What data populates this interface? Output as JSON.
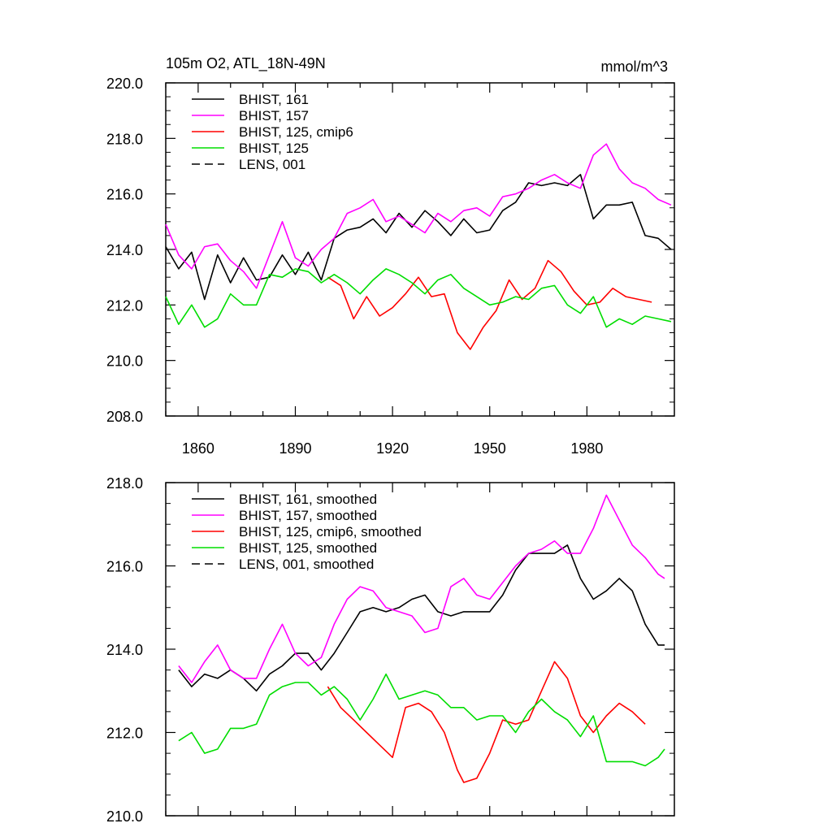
{
  "chart_data": [
    {
      "type": "line",
      "title": "105m O2, ATL_18N-49N",
      "units": "mmol/m^3",
      "xlim": [
        1850,
        2007
      ],
      "ylim": [
        208.0,
        220.0
      ],
      "xticks": [
        "1860",
        "1890",
        "1920",
        "1950",
        "1980"
      ],
      "xtick_values": [
        1860,
        1890,
        1920,
        1950,
        1980
      ],
      "yticks": [
        "208.0",
        "210.0",
        "212.0",
        "214.0",
        "216.0",
        "218.0",
        "220.0"
      ],
      "ytick_values": [
        208,
        210,
        212,
        214,
        216,
        218,
        220
      ],
      "legend_position": "top-left",
      "series": [
        {
          "name": "BHIST, 161",
          "color": "#000000",
          "dash": "solid",
          "x": [
            1850,
            1854,
            1858,
            1862,
            1866,
            1870,
            1874,
            1878,
            1882,
            1886,
            1890,
            1894,
            1898,
            1902,
            1906,
            1910,
            1914,
            1918,
            1922,
            1926,
            1930,
            1934,
            1938,
            1942,
            1946,
            1950,
            1954,
            1958,
            1962,
            1966,
            1970,
            1974,
            1978,
            1982,
            1986,
            1990,
            1994,
            1998,
            2002,
            2006
          ],
          "y": [
            214.1,
            213.3,
            213.9,
            212.2,
            213.8,
            212.8,
            213.7,
            212.9,
            213.0,
            213.8,
            213.1,
            213.9,
            212.9,
            214.4,
            214.7,
            214.8,
            215.1,
            214.6,
            215.3,
            214.8,
            215.4,
            215.0,
            214.5,
            215.1,
            214.6,
            214.7,
            215.4,
            215.7,
            216.4,
            216.3,
            216.4,
            216.3,
            216.7,
            215.1,
            215.6,
            215.6,
            215.7,
            214.5,
            214.4,
            214.0
          ]
        },
        {
          "name": "BHIST, 157",
          "color": "#ff00ff",
          "dash": "solid",
          "x": [
            1850,
            1854,
            1858,
            1862,
            1866,
            1870,
            1874,
            1878,
            1882,
            1886,
            1890,
            1894,
            1898,
            1902,
            1906,
            1910,
            1914,
            1918,
            1922,
            1926,
            1930,
            1934,
            1938,
            1942,
            1946,
            1950,
            1954,
            1958,
            1962,
            1966,
            1970,
            1974,
            1978,
            1982,
            1986,
            1990,
            1994,
            1998,
            2002,
            2006
          ],
          "y": [
            214.9,
            213.8,
            213.3,
            214.1,
            214.2,
            213.6,
            213.2,
            212.6,
            213.8,
            215.0,
            213.7,
            213.4,
            214.0,
            214.4,
            215.3,
            215.5,
            215.8,
            215.0,
            215.2,
            214.9,
            214.6,
            215.3,
            215.0,
            215.4,
            215.5,
            215.2,
            215.9,
            216.0,
            216.2,
            216.5,
            216.7,
            216.4,
            216.2,
            217.4,
            217.8,
            216.9,
            216.4,
            216.2,
            215.8,
            215.6
          ]
        },
        {
          "name": "BHIST, 125, cmip6",
          "color": "#ff0000",
          "dash": "solid",
          "x": [
            1900,
            1904,
            1908,
            1912,
            1916,
            1920,
            1924,
            1928,
            1932,
            1936,
            1940,
            1944,
            1948,
            1952,
            1956,
            1960,
            1964,
            1968,
            1972,
            1976,
            1980,
            1984,
            1988,
            1992,
            1996,
            2000
          ],
          "y": [
            213.0,
            212.7,
            211.5,
            212.3,
            211.6,
            211.9,
            212.4,
            213.0,
            212.3,
            212.4,
            211.0,
            210.4,
            211.2,
            211.8,
            212.9,
            212.2,
            212.6,
            213.6,
            213.2,
            212.5,
            212.0,
            212.1,
            212.6,
            212.3,
            212.2,
            212.1
          ]
        },
        {
          "name": "BHIST, 125",
          "color": "#00dd00",
          "dash": "solid",
          "x": [
            1850,
            1854,
            1858,
            1862,
            1866,
            1870,
            1874,
            1878,
            1882,
            1886,
            1890,
            1894,
            1898,
            1902,
            1906,
            1910,
            1914,
            1918,
            1922,
            1926,
            1930,
            1934,
            1938,
            1942,
            1946,
            1950,
            1954,
            1958,
            1962,
            1966,
            1970,
            1974,
            1978,
            1982,
            1986,
            1990,
            1994,
            1998,
            2002,
            2006
          ],
          "y": [
            212.3,
            211.3,
            212.0,
            211.2,
            211.5,
            212.4,
            212.0,
            212.0,
            213.1,
            213.0,
            213.3,
            213.2,
            212.8,
            213.1,
            212.8,
            212.4,
            212.9,
            213.3,
            213.1,
            212.8,
            212.4,
            212.9,
            213.1,
            212.6,
            212.3,
            212.0,
            212.1,
            212.3,
            212.2,
            212.6,
            212.7,
            212.0,
            211.7,
            212.3,
            211.2,
            211.5,
            211.3,
            211.6,
            211.5,
            211.4
          ]
        },
        {
          "name": "LENS, 001",
          "color": "#000000",
          "dash": "dashed",
          "x": [],
          "y": []
        }
      ]
    },
    {
      "type": "line",
      "xlim": [
        1850,
        2007
      ],
      "ylim": [
        210.0,
        218.0
      ],
      "xtick_values": [
        1860,
        1890,
        1920,
        1950,
        1980
      ],
      "yticks": [
        "210.0",
        "212.0",
        "214.0",
        "216.0",
        "218.0"
      ],
      "ytick_values": [
        210,
        212,
        214,
        216,
        218
      ],
      "legend_position": "top-left",
      "series": [
        {
          "name": "BHIST, 161, smoothed",
          "color": "#000000",
          "dash": "solid",
          "x": [
            1854,
            1858,
            1862,
            1866,
            1870,
            1874,
            1878,
            1882,
            1886,
            1890,
            1894,
            1898,
            1902,
            1906,
            1910,
            1914,
            1918,
            1922,
            1926,
            1930,
            1934,
            1938,
            1942,
            1946,
            1950,
            1954,
            1958,
            1962,
            1966,
            1970,
            1974,
            1978,
            1982,
            1986,
            1990,
            1994,
            1998,
            2002,
            2004
          ],
          "y": [
            213.5,
            213.1,
            213.4,
            213.3,
            213.5,
            213.3,
            213.0,
            213.4,
            213.6,
            213.9,
            213.9,
            213.5,
            213.9,
            214.4,
            214.9,
            215.0,
            214.9,
            215.0,
            215.2,
            215.3,
            214.9,
            214.8,
            214.9,
            214.9,
            214.9,
            215.3,
            215.9,
            216.3,
            216.3,
            216.3,
            216.5,
            215.7,
            215.2,
            215.4,
            215.7,
            215.4,
            214.6,
            214.1,
            214.1
          ]
        },
        {
          "name": "BHIST, 157, smoothed",
          "color": "#ff00ff",
          "dash": "solid",
          "x": [
            1854,
            1858,
            1862,
            1866,
            1870,
            1874,
            1878,
            1882,
            1886,
            1890,
            1894,
            1898,
            1902,
            1906,
            1910,
            1914,
            1918,
            1922,
            1926,
            1930,
            1934,
            1938,
            1942,
            1946,
            1950,
            1954,
            1958,
            1962,
            1966,
            1970,
            1974,
            1978,
            1982,
            1986,
            1990,
            1994,
            1998,
            2002,
            2004
          ],
          "y": [
            213.6,
            213.2,
            213.7,
            214.1,
            213.5,
            213.3,
            213.3,
            214.0,
            214.6,
            213.9,
            213.6,
            213.8,
            214.6,
            215.2,
            215.5,
            215.4,
            215.0,
            214.9,
            214.8,
            214.4,
            214.5,
            215.5,
            215.7,
            215.3,
            215.2,
            215.6,
            216.0,
            216.3,
            216.4,
            216.6,
            216.3,
            216.3,
            216.9,
            217.7,
            217.1,
            216.5,
            216.2,
            215.8,
            215.7
          ]
        },
        {
          "name": "BHIST, 125, cmip6, smoothed",
          "color": "#ff0000",
          "dash": "solid",
          "x": [
            1900,
            1904,
            1908,
            1912,
            1916,
            1920,
            1924,
            1928,
            1932,
            1936,
            1940,
            1942,
            1946,
            1950,
            1954,
            1958,
            1962,
            1966,
            1970,
            1974,
            1978,
            1982,
            1986,
            1990,
            1994,
            1998
          ],
          "y": [
            213.1,
            212.6,
            212.3,
            212.0,
            211.7,
            211.4,
            212.6,
            212.7,
            212.5,
            212.0,
            211.1,
            210.8,
            210.9,
            211.5,
            212.3,
            212.2,
            212.3,
            213.0,
            213.7,
            213.3,
            212.4,
            212.0,
            212.4,
            212.7,
            212.5,
            212.2
          ]
        },
        {
          "name": "BHIST, 125, smoothed",
          "color": "#00dd00",
          "dash": "solid",
          "x": [
            1854,
            1858,
            1862,
            1866,
            1870,
            1874,
            1878,
            1882,
            1886,
            1890,
            1894,
            1898,
            1902,
            1906,
            1910,
            1914,
            1918,
            1922,
            1926,
            1930,
            1934,
            1938,
            1942,
            1946,
            1950,
            1954,
            1958,
            1962,
            1966,
            1970,
            1974,
            1978,
            1982,
            1986,
            1990,
            1994,
            1998,
            2002,
            2004
          ],
          "y": [
            211.8,
            212.0,
            211.5,
            211.6,
            212.1,
            212.1,
            212.2,
            212.9,
            213.1,
            213.2,
            213.2,
            212.9,
            213.1,
            212.8,
            212.3,
            212.8,
            213.4,
            212.8,
            212.9,
            213.0,
            212.9,
            212.6,
            212.6,
            212.3,
            212.4,
            212.4,
            212.0,
            212.5,
            212.8,
            212.5,
            212.3,
            211.9,
            212.4,
            211.3,
            211.3,
            211.3,
            211.2,
            211.4,
            211.6
          ]
        },
        {
          "name": "LENS, 001, smoothed",
          "color": "#000000",
          "dash": "dashed",
          "x": [],
          "y": []
        }
      ]
    }
  ]
}
